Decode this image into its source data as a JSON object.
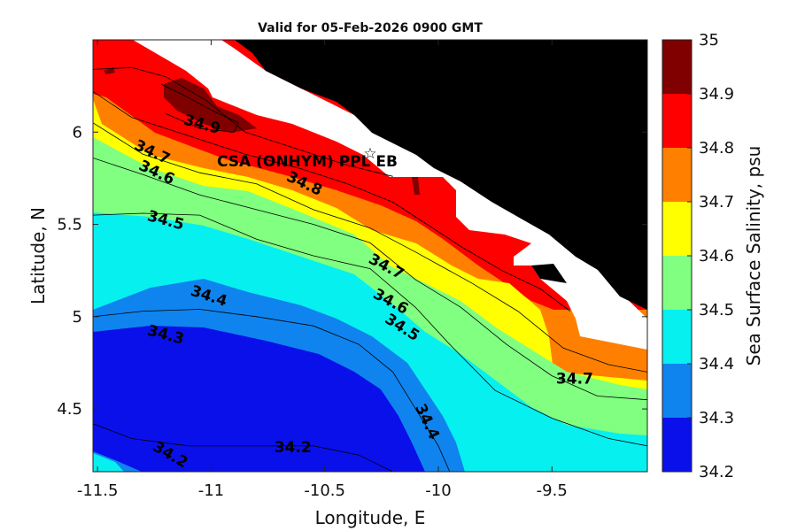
{
  "chart_data": {
    "type": "heatmap",
    "subtype": "filled-contour",
    "title": "Valid for 05-Feb-2026 0900 GMT",
    "xlabel": "Longitude, E",
    "ylabel": "Latitude, N",
    "xlim": [
      -11.52,
      -9.08
    ],
    "ylim": [
      4.16,
      6.5
    ],
    "xticks": [
      -11.5,
      -11,
      -10.5,
      -10,
      -9.5
    ],
    "xtick_labels": [
      "-11.5",
      "-11",
      "-10.5",
      "-10",
      "-9.5"
    ],
    "yticks": [
      4.5,
      5,
      5.5,
      6
    ],
    "ytick_labels": [
      "4.5",
      "5",
      "5.5",
      "6"
    ],
    "colorbar": {
      "label": "Sea Surface Salinity, psu",
      "ticks": [
        34.2,
        34.3,
        34.4,
        34.5,
        34.6,
        34.7,
        34.8,
        34.9,
        35
      ],
      "tick_labels": [
        "34.2",
        "34.3",
        "34.4",
        "34.5",
        "34.6",
        "34.7",
        "34.8",
        "34.9",
        "35"
      ],
      "bands": [
        {
          "from": 34.2,
          "to": 34.3,
          "color": "#0a10ea"
        },
        {
          "from": 34.3,
          "to": 34.4,
          "color": "#0f84ef"
        },
        {
          "from": 34.4,
          "to": 34.5,
          "color": "#06f0f0"
        },
        {
          "from": 34.5,
          "to": 34.6,
          "color": "#80ff80"
        },
        {
          "from": 34.6,
          "to": 34.7,
          "color": "#ffff00"
        },
        {
          "from": 34.7,
          "to": 34.8,
          "color": "#ff8000"
        },
        {
          "from": 34.8,
          "to": 34.9,
          "color": "#fe0000"
        },
        {
          "from": 34.9,
          "to": 35.0,
          "color": "#800000"
        }
      ]
    },
    "contour_levels": [
      {
        "level": 34.2,
        "points": [
          [
            -11.52,
            4.42
          ],
          [
            -11.35,
            4.34
          ],
          [
            -11.1,
            4.3
          ],
          [
            -10.8,
            4.3
          ],
          [
            -10.55,
            4.3
          ],
          [
            -10.35,
            4.25
          ],
          [
            -10.2,
            4.16
          ]
        ]
      },
      {
        "level": 34.3,
        "points": [
          [
            -11.52,
            5.0
          ],
          [
            -11.3,
            5.03
          ],
          [
            -11.05,
            5.04
          ],
          [
            -10.8,
            5.0
          ],
          [
            -10.55,
            4.95
          ],
          [
            -10.35,
            4.85
          ],
          [
            -10.2,
            4.7
          ],
          [
            -10.1,
            4.5
          ],
          [
            -10.0,
            4.3
          ],
          [
            -9.95,
            4.16
          ]
        ]
      },
      {
        "level": 34.4,
        "points": [
          [
            -11.52,
            5.55
          ],
          [
            -11.3,
            5.56
          ],
          [
            -11.05,
            5.55
          ],
          [
            -10.8,
            5.42
          ],
          [
            -10.55,
            5.33
          ],
          [
            -10.3,
            5.26
          ],
          [
            -10.1,
            5.05
          ],
          [
            -9.95,
            4.85
          ],
          [
            -9.75,
            4.6
          ],
          [
            -9.5,
            4.45
          ],
          [
            -9.25,
            4.34
          ],
          [
            -9.08,
            4.3
          ]
        ]
      },
      {
        "level": 34.5,
        "points": [
          [
            -11.52,
            5.86
          ],
          [
            -11.3,
            5.77
          ],
          [
            -11.05,
            5.66
          ],
          [
            -10.8,
            5.58
          ],
          [
            -10.55,
            5.5
          ],
          [
            -10.3,
            5.4
          ],
          [
            -10.1,
            5.2
          ],
          [
            -9.9,
            5.05
          ],
          [
            -9.7,
            4.85
          ],
          [
            -9.5,
            4.68
          ],
          [
            -9.3,
            4.57
          ],
          [
            -9.08,
            4.55
          ]
        ]
      },
      {
        "level": 34.6,
        "points": [
          [
            -11.52,
            6.05
          ],
          [
            -11.3,
            5.88
          ],
          [
            -11.05,
            5.78
          ],
          [
            -10.8,
            5.72
          ],
          [
            -10.55,
            5.58
          ],
          [
            -10.3,
            5.48
          ],
          [
            -10.1,
            5.35
          ],
          [
            -9.85,
            5.18
          ],
          [
            -9.65,
            5.03
          ],
          [
            -9.45,
            4.83
          ],
          [
            -9.25,
            4.74
          ],
          [
            -9.08,
            4.7
          ]
        ]
      },
      {
        "level": 34.7,
        "points": [
          [
            -11.52,
            6.22
          ],
          [
            -11.35,
            6.08
          ],
          [
            -11.1,
            5.98
          ],
          [
            -10.85,
            5.88
          ],
          [
            -10.6,
            5.8
          ],
          [
            -10.4,
            5.72
          ],
          [
            -10.2,
            5.62
          ],
          [
            -10.05,
            5.5
          ],
          [
            -9.9,
            5.38
          ],
          [
            -9.72,
            5.25
          ],
          [
            -9.55,
            5.15
          ],
          [
            -9.42,
            5.03
          ]
        ]
      },
      {
        "level": 34.8,
        "points": [
          [
            -11.52,
            6.34
          ],
          [
            -11.35,
            6.35
          ],
          [
            -11.2,
            6.3
          ],
          [
            -11.02,
            6.17
          ],
          [
            -10.85,
            6.0
          ],
          [
            -10.6,
            5.9
          ],
          [
            -10.4,
            5.82
          ],
          [
            -10.2,
            5.76
          ]
        ]
      },
      {
        "level": 34.9,
        "points": [
          [
            -11.22,
            6.26
          ],
          [
            -11.12,
            6.2
          ],
          [
            -11.0,
            6.12
          ],
          [
            -10.88,
            6.05
          ],
          [
            -10.9,
            6.0
          ],
          [
            -11.05,
            6.02
          ],
          [
            -11.2,
            6.1
          ]
        ]
      }
    ],
    "contour_labels": [
      {
        "text": "34.9",
        "x": -11.04,
        "y": 6.04,
        "angle": 15
      },
      {
        "text": "34.7",
        "x": -11.26,
        "y": 5.89,
        "angle": 25
      },
      {
        "text": "34.6",
        "x": -11.24,
        "y": 5.78,
        "angle": 25
      },
      {
        "text": "34.8",
        "x": -10.59,
        "y": 5.72,
        "angle": 25
      },
      {
        "text": "34.5",
        "x": -11.2,
        "y": 5.52,
        "angle": 15
      },
      {
        "text": "34.7",
        "x": -10.23,
        "y": 5.27,
        "angle": 28
      },
      {
        "text": "34.6",
        "x": -10.21,
        "y": 5.08,
        "angle": 28
      },
      {
        "text": "34.4",
        "x": -11.01,
        "y": 5.11,
        "angle": 18
      },
      {
        "text": "34.5",
        "x": -10.16,
        "y": 4.94,
        "angle": 32
      },
      {
        "text": "34.3",
        "x": -11.2,
        "y": 4.9,
        "angle": 15
      },
      {
        "text": "34.7",
        "x": -9.4,
        "y": 4.66,
        "angle": 0
      },
      {
        "text": "34.4",
        "x": -10.05,
        "y": 4.43,
        "angle": 65
      },
      {
        "text": "34.2",
        "x": -11.18,
        "y": 4.25,
        "angle": 30
      },
      {
        "text": "34.2",
        "x": -10.64,
        "y": 4.29,
        "angle": 0
      }
    ],
    "station": {
      "name": "CSA (ONHYM) PPL EB",
      "lon": -10.3,
      "lat": 5.9
    }
  }
}
